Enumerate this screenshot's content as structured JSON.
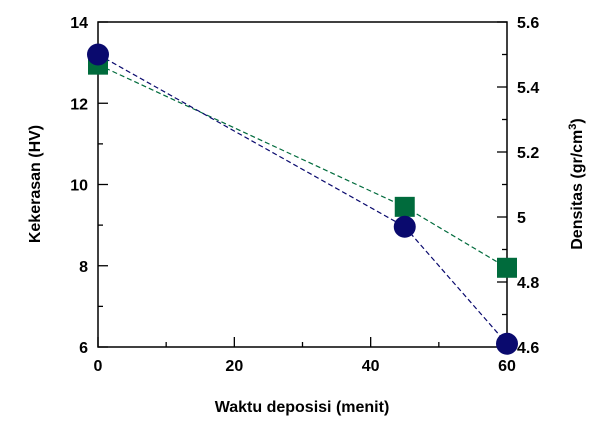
{
  "chart_data": {
    "type": "scatter",
    "xlabel": "Waktu deposisi  (menit)",
    "ylabel_left": "Kekerasan (HV)",
    "ylabel_right_main": "Densitas (gr/cm",
    "ylabel_right_sup": "3",
    "ylabel_right_end": ")",
    "xlim": [
      0,
      60
    ],
    "ylim_left": [
      6,
      14
    ],
    "ylim_right": [
      4.6,
      5.6
    ],
    "x_ticks": [
      "0",
      "20",
      "40",
      "60"
    ],
    "y_left_ticks": [
      "6",
      "8",
      "10",
      "12",
      "14"
    ],
    "y_right_ticks": [
      "4.6",
      "4.8",
      "5",
      "5.2",
      "5.4",
      "5.6"
    ],
    "grid": false,
    "series": [
      {
        "axis": "left",
        "marker": "square",
        "color": "#006b3c",
        "x": [
          0,
          45,
          60
        ],
        "y": [
          12.95,
          9.45,
          7.95
        ]
      },
      {
        "axis": "right",
        "marker": "circle",
        "color": "#0a0a6e",
        "x": [
          0,
          45,
          60
        ],
        "y": [
          5.5,
          4.97,
          4.61
        ]
      }
    ]
  }
}
